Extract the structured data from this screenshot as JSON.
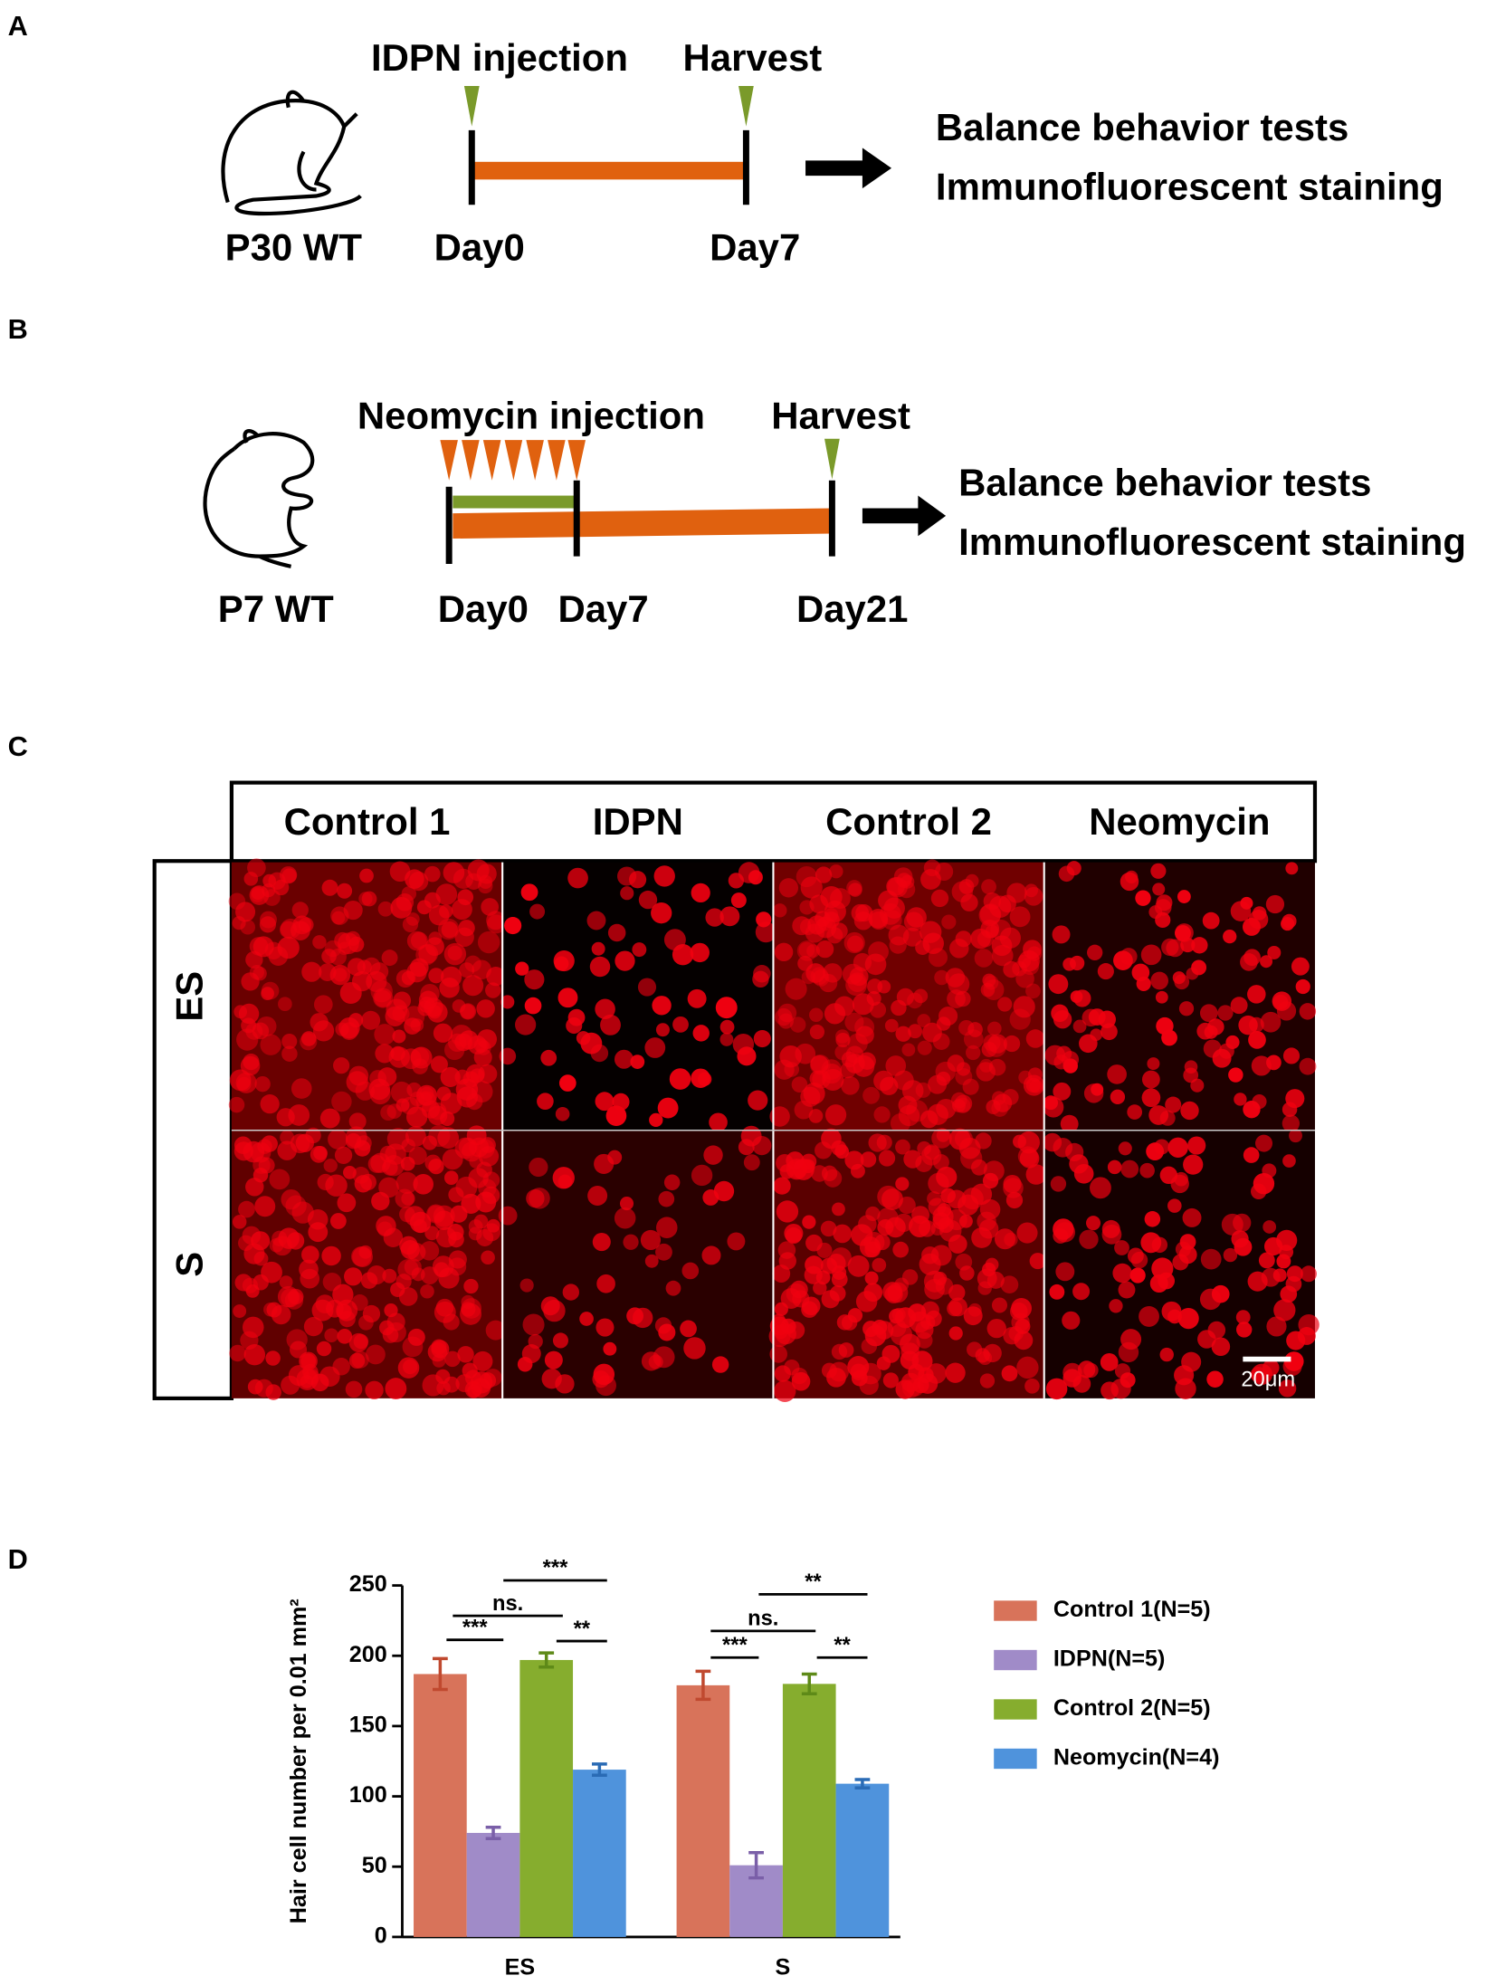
{
  "panels": {
    "a": "A",
    "b": "B",
    "c": "C",
    "d": "D"
  },
  "panel_a": {
    "injection": "IDPN injection",
    "harvest": "Harvest",
    "subject": "P30 WT",
    "start": "Day0",
    "end": "Day7",
    "outcomes": [
      "Balance behavior tests",
      "Immunofluorescent staining"
    ]
  },
  "panel_b": {
    "injection": "Neomycin injection",
    "harvest": "Harvest",
    "subject": "P7 WT",
    "days": [
      "Day0",
      "Day7",
      "Day21"
    ],
    "outcomes": [
      "Balance behavior tests",
      "Immunofluorescent staining"
    ]
  },
  "panel_c": {
    "columns": [
      "Control 1",
      "IDPN",
      "Control 2",
      "Neomycin"
    ],
    "rows": [
      "ES",
      "S"
    ],
    "scale_bar": "20μm"
  },
  "chart_data": {
    "type": "bar",
    "ylabel": "Hair cell number  per 0.01 mm²",
    "categories": [
      "ES",
      "S"
    ],
    "series": [
      {
        "name": "Control 1(N=5)",
        "color": "#d8735a",
        "error_color": "#c0492f",
        "values": [
          187,
          179
        ],
        "errors": [
          11,
          10
        ]
      },
      {
        "name": "IDPN(N=5)",
        "color": "#a08bc8",
        "error_color": "#7a5fa8",
        "values": [
          74,
          51
        ],
        "errors": [
          4,
          9
        ]
      },
      {
        "name": "Control 2(N=5)",
        "color": "#86ad2e",
        "error_color": "#5e8a18",
        "values": [
          197,
          180
        ],
        "errors": [
          5,
          7
        ]
      },
      {
        "name": "Neomycin(N=4)",
        "color": "#4f93dc",
        "error_color": "#2a6bb5",
        "values": [
          119,
          109
        ],
        "errors": [
          4,
          3
        ]
      }
    ],
    "ylim": [
      0,
      250
    ],
    "yticks": [
      0,
      50,
      100,
      150,
      200,
      250
    ],
    "legend": "right",
    "annotations": [
      "***",
      "ns.",
      "***",
      "**",
      "***",
      "ns.",
      "**",
      "**"
    ]
  }
}
